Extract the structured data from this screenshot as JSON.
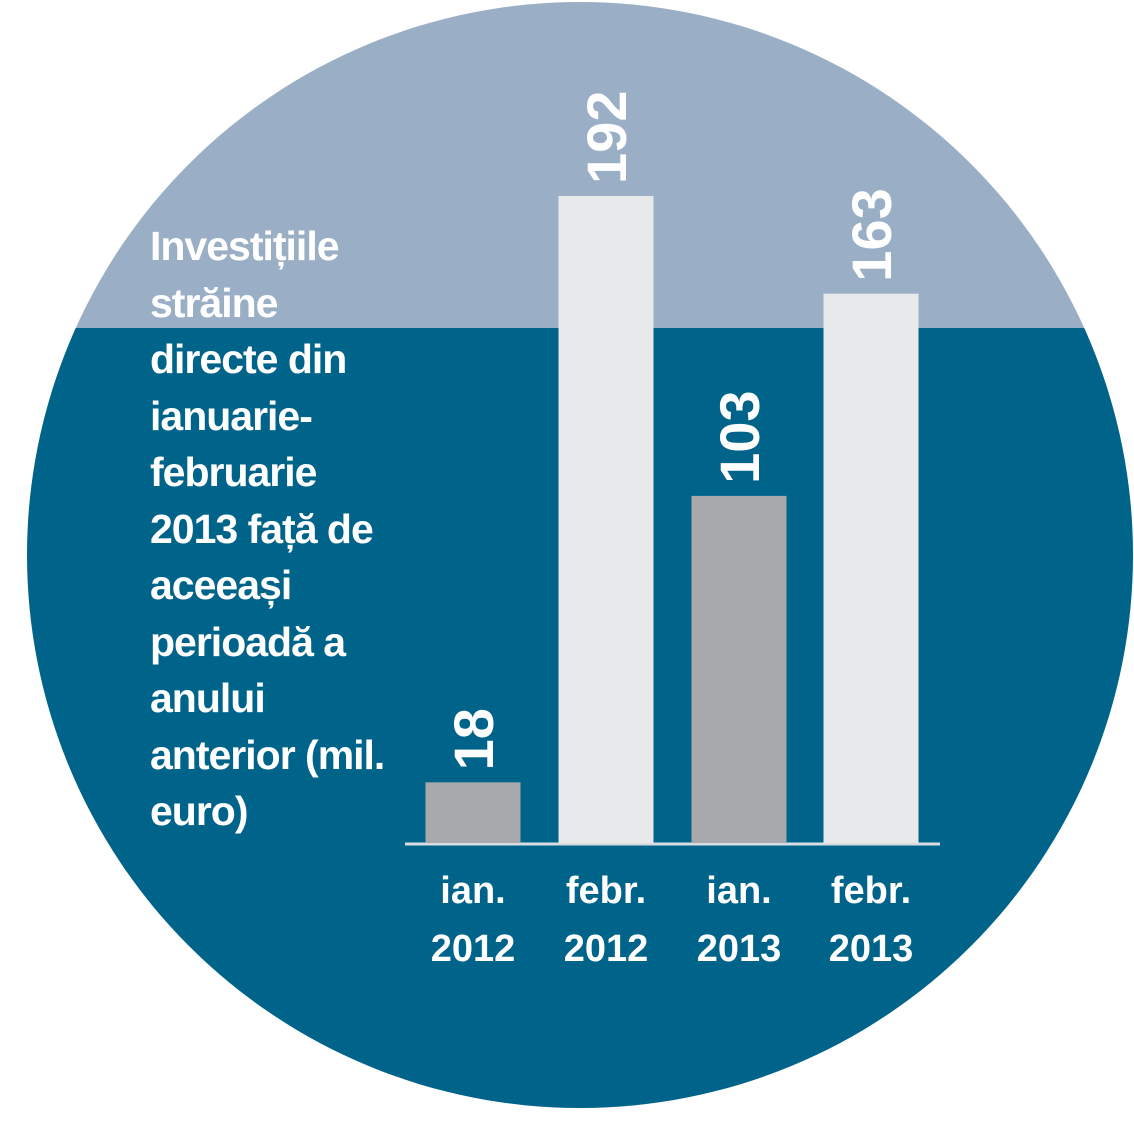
{
  "chart_data": {
    "type": "bar",
    "title": "Investițiile străine directe din ianuarie-februarie 2013 față de aceeași perioadă a anului anterior (mil. euro)",
    "categories": [
      "ian. 2012",
      "febr. 2012",
      "ian. 2013",
      "febr. 2013"
    ],
    "values": [
      18,
      192,
      103,
      163
    ],
    "colors": [
      "#a7a9ac",
      "#e8e9eb",
      "#a7a9ac",
      "#e8e9eb"
    ],
    "ylim": [
      0,
      200
    ]
  }
}
